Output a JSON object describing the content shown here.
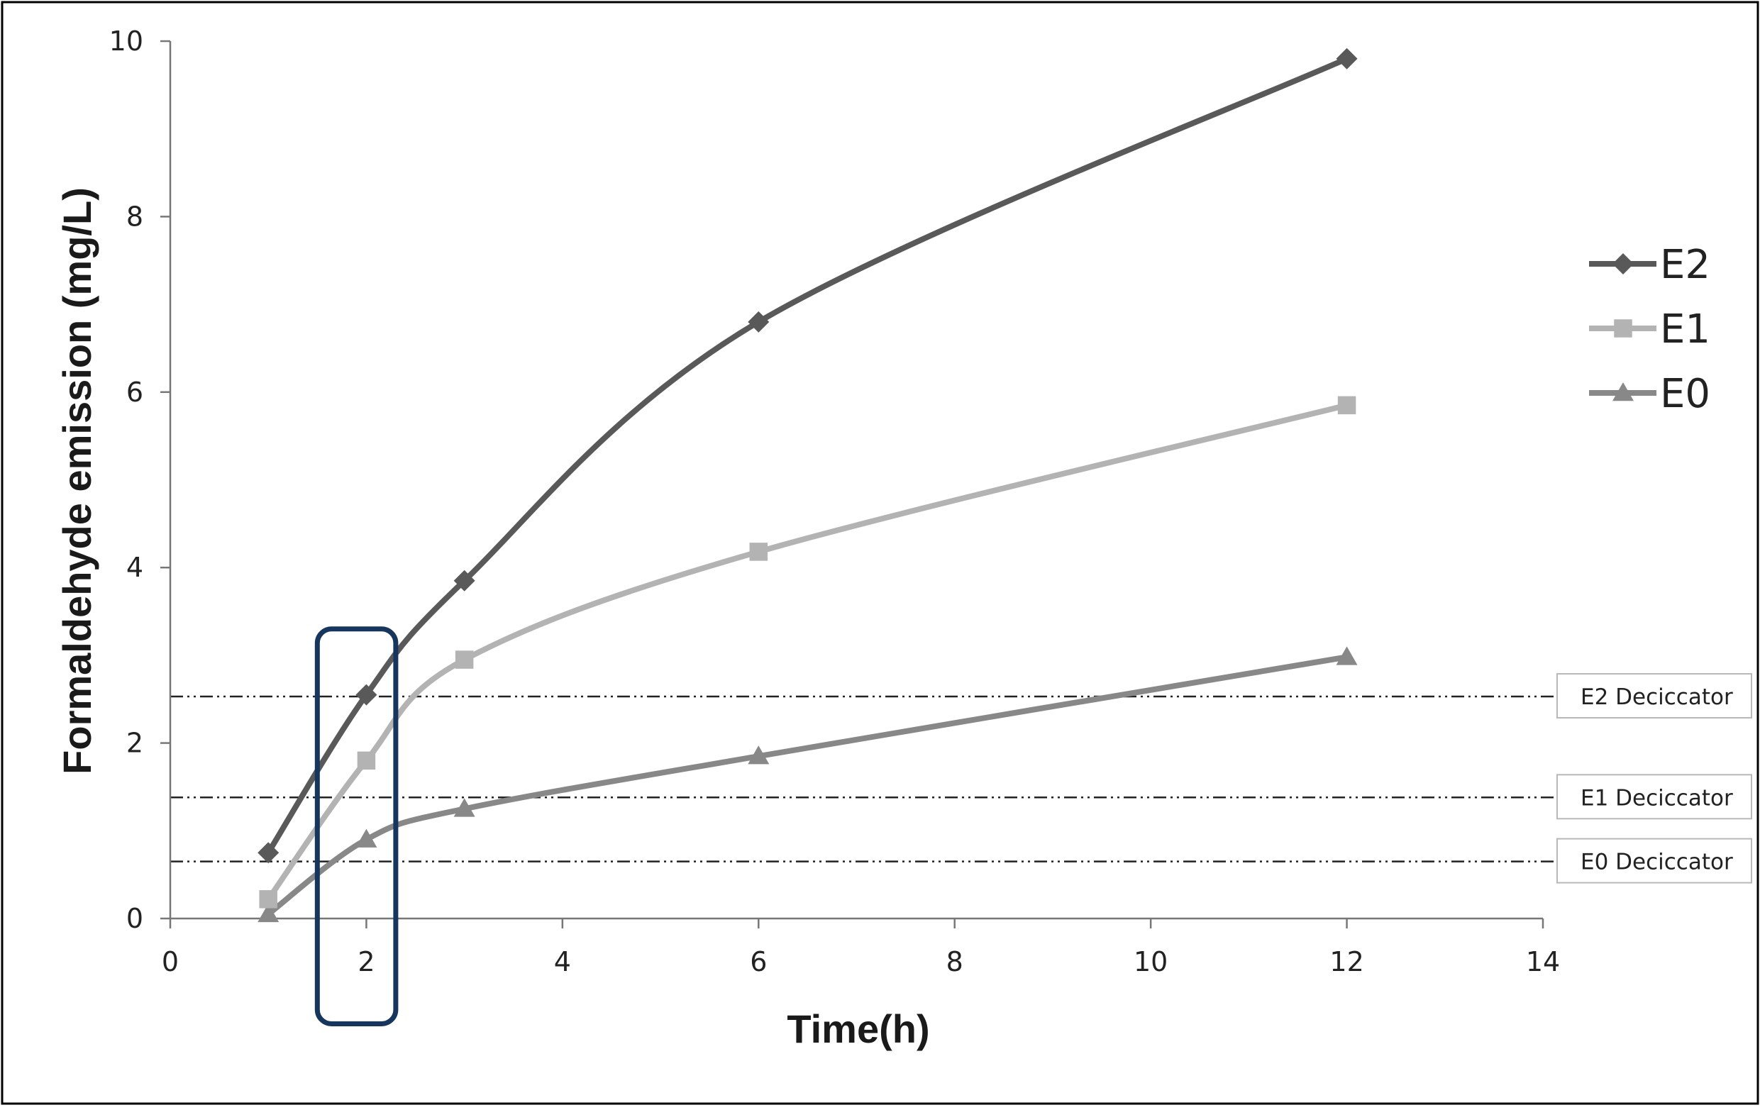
{
  "chart_data": {
    "type": "line",
    "xlabel": "Time(h)",
    "ylabel": "Formaldehyde  emission (mg/L)",
    "xlim": [
      0,
      14
    ],
    "ylim": [
      0,
      10
    ],
    "x_ticks": [
      "0",
      "2",
      "4",
      "6",
      "8",
      "10",
      "12",
      "14"
    ],
    "y_ticks": [
      "0",
      "2",
      "4",
      "6",
      "8",
      "10"
    ],
    "grid": false,
    "legend_position": "right",
    "series": [
      {
        "name": "E2",
        "marker": "diamond",
        "color": "#595959",
        "points": [
          [
            1,
            0.75
          ],
          [
            2,
            2.55
          ],
          [
            3,
            3.85
          ],
          [
            6,
            6.8
          ],
          [
            12,
            9.8
          ]
        ]
      },
      {
        "name": "E1",
        "marker": "square",
        "color": "#b3b3b3",
        "points": [
          [
            1,
            0.22
          ],
          [
            2,
            1.8
          ],
          [
            3,
            2.95
          ],
          [
            6,
            4.18
          ],
          [
            12,
            5.85
          ]
        ]
      },
      {
        "name": "E0",
        "marker": "triangle",
        "color": "#888888",
        "points": [
          [
            1,
            0.05
          ],
          [
            2,
            0.9
          ],
          [
            3,
            1.25
          ],
          [
            6,
            1.85
          ],
          [
            12,
            2.98
          ]
        ]
      }
    ],
    "reference_lines": [
      {
        "label": "E2  Deciccator",
        "y": 2.53
      },
      {
        "label": "E1  Deciccator",
        "y": 1.38
      },
      {
        "label": "E0  Deciccator",
        "y": 0.65
      }
    ],
    "highlight": {
      "x_range": [
        1.5,
        2.3
      ],
      "y_range": [
        -1.2,
        3.3
      ],
      "color": "#17365d"
    }
  }
}
